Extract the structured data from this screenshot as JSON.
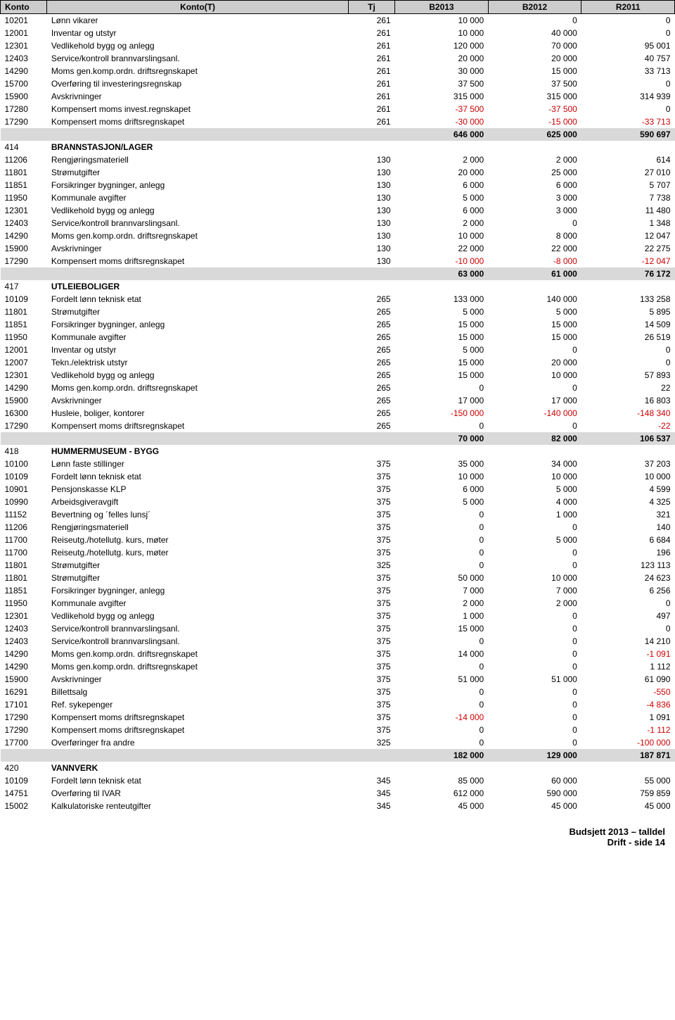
{
  "header": {
    "cols": [
      "Konto",
      "Konto(T)",
      "Tj",
      "B2013",
      "B2012",
      "R2011"
    ]
  },
  "footer": {
    "line1": "Budsjett 2013 – talldel",
    "line2": "Drift - side 14"
  },
  "rows": [
    {
      "k": "10201",
      "t": "Lønn vikarer",
      "tj": "261",
      "a": "10 000",
      "b": "0",
      "c": "0"
    },
    {
      "k": "12001",
      "t": "Inventar og utstyr",
      "tj": "261",
      "a": "10 000",
      "b": "40 000",
      "c": "0"
    },
    {
      "k": "12301",
      "t": "Vedlikehold bygg og anlegg",
      "tj": "261",
      "a": "120 000",
      "b": "70 000",
      "c": "95 001"
    },
    {
      "k": "12403",
      "t": "Service/kontroll brannvarslingsanl.",
      "tj": "261",
      "a": "20 000",
      "b": "20 000",
      "c": "40 757"
    },
    {
      "k": "14290",
      "t": "Moms gen.komp.ordn. driftsregnskapet",
      "tj": "261",
      "a": "30 000",
      "b": "15 000",
      "c": "33 713"
    },
    {
      "k": "15700",
      "t": "Overføring til investeringsregnskap",
      "tj": "261",
      "a": "37 500",
      "b": "37 500",
      "c": "0"
    },
    {
      "k": "15900",
      "t": "Avskrivninger",
      "tj": "261",
      "a": "315 000",
      "b": "315 000",
      "c": "314 939"
    },
    {
      "k": "17280",
      "t": "Kompensert moms invest.regnskapet",
      "tj": "261",
      "a": "-37 500",
      "aNeg": true,
      "b": "-37 500",
      "bNeg": true,
      "c": "0"
    },
    {
      "k": "17290",
      "t": "Kompensert moms driftsregnskapet",
      "tj": "261",
      "a": "-30 000",
      "aNeg": true,
      "b": "-15 000",
      "bNeg": true,
      "c": "-33 713",
      "cNeg": true
    },
    {
      "section": true,
      "a": "646 000",
      "b": "625 000",
      "c": "590 697"
    },
    {
      "sectionLabel": true,
      "k": "414",
      "t": "BRANNSTASJON/LAGER"
    },
    {
      "k": "11206",
      "t": "Rengjøringsmateriell",
      "tj": "130",
      "a": "2 000",
      "b": "2 000",
      "c": "614"
    },
    {
      "k": "11801",
      "t": "Strømutgifter",
      "tj": "130",
      "a": "20 000",
      "b": "25 000",
      "c": "27 010"
    },
    {
      "k": "11851",
      "t": "Forsikringer bygninger, anlegg",
      "tj": "130",
      "a": "6 000",
      "b": "6 000",
      "c": "5 707"
    },
    {
      "k": "11950",
      "t": "Kommunale avgifter",
      "tj": "130",
      "a": "5 000",
      "b": "3 000",
      "c": "7 738"
    },
    {
      "k": "12301",
      "t": "Vedlikehold bygg og anlegg",
      "tj": "130",
      "a": "6 000",
      "b": "3 000",
      "c": "11 480"
    },
    {
      "k": "12403",
      "t": "Service/kontroll brannvarslingsanl.",
      "tj": "130",
      "a": "2 000",
      "b": "0",
      "c": "1 348"
    },
    {
      "k": "14290",
      "t": "Moms gen.komp.ordn. driftsregnskapet",
      "tj": "130",
      "a": "10 000",
      "b": "8 000",
      "c": "12 047"
    },
    {
      "k": "15900",
      "t": "Avskrivninger",
      "tj": "130",
      "a": "22 000",
      "b": "22 000",
      "c": "22 275"
    },
    {
      "k": "17290",
      "t": "Kompensert moms driftsregnskapet",
      "tj": "130",
      "a": "-10 000",
      "aNeg": true,
      "b": "-8 000",
      "bNeg": true,
      "c": "-12 047",
      "cNeg": true
    },
    {
      "section": true,
      "a": "63 000",
      "b": "61 000",
      "c": "76 172"
    },
    {
      "sectionLabel": true,
      "k": "417",
      "t": "UTLEIEBOLIGER"
    },
    {
      "k": "10109",
      "t": "Fordelt lønn teknisk etat",
      "tj": "265",
      "a": "133 000",
      "b": "140 000",
      "c": "133 258"
    },
    {
      "k": "11801",
      "t": "Strømutgifter",
      "tj": "265",
      "a": "5 000",
      "b": "5 000",
      "c": "5 895"
    },
    {
      "k": "11851",
      "t": "Forsikringer bygninger, anlegg",
      "tj": "265",
      "a": "15 000",
      "b": "15 000",
      "c": "14 509"
    },
    {
      "k": "11950",
      "t": "Kommunale avgifter",
      "tj": "265",
      "a": "15 000",
      "b": "15 000",
      "c": "26 519"
    },
    {
      "k": "12001",
      "t": "Inventar og utstyr",
      "tj": "265",
      "a": "5 000",
      "b": "0",
      "c": "0"
    },
    {
      "k": "12007",
      "t": "Tekn./elektrisk utstyr",
      "tj": "265",
      "a": "15 000",
      "b": "20 000",
      "c": "0"
    },
    {
      "k": "12301",
      "t": "Vedlikehold bygg og anlegg",
      "tj": "265",
      "a": "15 000",
      "b": "10 000",
      "c": "57 893"
    },
    {
      "k": "14290",
      "t": "Moms gen.komp.ordn. driftsregnskapet",
      "tj": "265",
      "a": "0",
      "b": "0",
      "c": "22"
    },
    {
      "k": "15900",
      "t": "Avskrivninger",
      "tj": "265",
      "a": "17 000",
      "b": "17 000",
      "c": "16 803"
    },
    {
      "k": "16300",
      "t": "Husleie, boliger, kontorer",
      "tj": "265",
      "a": "-150 000",
      "aNeg": true,
      "b": "-140 000",
      "bNeg": true,
      "c": "-148 340",
      "cNeg": true
    },
    {
      "k": "17290",
      "t": "Kompensert moms driftsregnskapet",
      "tj": "265",
      "a": "0",
      "b": "0",
      "c": "-22",
      "cNeg": true
    },
    {
      "section": true,
      "a": "70 000",
      "b": "82 000",
      "c": "106 537"
    },
    {
      "sectionLabel": true,
      "k": "418",
      "t": "HUMMERMUSEUM - BYGG"
    },
    {
      "k": "10100",
      "t": "Lønn faste stillinger",
      "tj": "375",
      "a": "35 000",
      "b": "34 000",
      "c": "37 203"
    },
    {
      "k": "10109",
      "t": "Fordelt lønn teknisk etat",
      "tj": "375",
      "a": "10 000",
      "b": "10 000",
      "c": "10 000"
    },
    {
      "k": "10901",
      "t": "Pensjonskasse KLP",
      "tj": "375",
      "a": "6 000",
      "b": "5 000",
      "c": "4 599"
    },
    {
      "k": "10990",
      "t": "Arbeidsgiveravgift",
      "tj": "375",
      "a": "5 000",
      "b": "4 000",
      "c": "4 325"
    },
    {
      "k": "11152",
      "t": "Bevertning og ´felles lunsj´",
      "tj": "375",
      "a": "0",
      "b": "1 000",
      "c": "321"
    },
    {
      "k": "11206",
      "t": "Rengjøringsmateriell",
      "tj": "375",
      "a": "0",
      "b": "0",
      "c": "140"
    },
    {
      "k": "11700",
      "t": "Reiseutg./hotellutg. kurs, møter",
      "tj": "375",
      "a": "0",
      "b": "5 000",
      "c": "6 684"
    },
    {
      "k": "11700",
      "t": "Reiseutg./hotellutg. kurs, møter",
      "tj": "375",
      "a": "0",
      "b": "0",
      "c": "196"
    },
    {
      "k": "11801",
      "t": "Strømutgifter",
      "tj": "325",
      "a": "0",
      "b": "0",
      "c": "123 113"
    },
    {
      "k": "11801",
      "t": "Strømutgifter",
      "tj": "375",
      "a": "50 000",
      "b": "10 000",
      "c": "24 623"
    },
    {
      "k": "11851",
      "t": "Forsikringer bygninger, anlegg",
      "tj": "375",
      "a": "7 000",
      "b": "7 000",
      "c": "6 256"
    },
    {
      "k": "11950",
      "t": "Kommunale avgifter",
      "tj": "375",
      "a": "2 000",
      "b": "2 000",
      "c": "0"
    },
    {
      "k": "12301",
      "t": "Vedlikehold bygg og anlegg",
      "tj": "375",
      "a": "1 000",
      "b": "0",
      "c": "497"
    },
    {
      "k": "12403",
      "t": "Service/kontroll brannvarslingsanl.",
      "tj": "375",
      "a": "15 000",
      "b": "0",
      "c": "0"
    },
    {
      "k": "12403",
      "t": "Service/kontroll brannvarslingsanl.",
      "tj": "375",
      "a": "0",
      "b": "0",
      "c": "14 210"
    },
    {
      "k": "14290",
      "t": "Moms gen.komp.ordn. driftsregnskapet",
      "tj": "375",
      "a": "14 000",
      "b": "0",
      "c": "-1 091",
      "cNeg": true
    },
    {
      "k": "14290",
      "t": "Moms gen.komp.ordn. driftsregnskapet",
      "tj": "375",
      "a": "0",
      "b": "0",
      "c": "1 112"
    },
    {
      "k": "15900",
      "t": "Avskrivninger",
      "tj": "375",
      "a": "51 000",
      "b": "51 000",
      "c": "61 090"
    },
    {
      "k": "16291",
      "t": "Billettsalg",
      "tj": "375",
      "a": "0",
      "b": "0",
      "c": "-550",
      "cNeg": true
    },
    {
      "k": "17101",
      "t": "Ref. sykepenger",
      "tj": "375",
      "a": "0",
      "b": "0",
      "c": "-4 836",
      "cNeg": true
    },
    {
      "k": "17290",
      "t": "Kompensert moms driftsregnskapet",
      "tj": "375",
      "a": "-14 000",
      "aNeg": true,
      "b": "0",
      "c": "1 091"
    },
    {
      "k": "17290",
      "t": "Kompensert moms driftsregnskapet",
      "tj": "375",
      "a": "0",
      "b": "0",
      "c": "-1 112",
      "cNeg": true
    },
    {
      "k": "17700",
      "t": "Overføringer fra andre",
      "tj": "325",
      "a": "0",
      "b": "0",
      "c": "-100 000",
      "cNeg": true
    },
    {
      "section": true,
      "a": "182 000",
      "b": "129 000",
      "c": "187 871"
    },
    {
      "sectionLabel": true,
      "k": "420",
      "t": "VANNVERK"
    },
    {
      "k": "10109",
      "t": "Fordelt lønn teknisk etat",
      "tj": "345",
      "a": "85 000",
      "b": "60 000",
      "c": "55 000"
    },
    {
      "k": "14751",
      "t": "Overføring til IVAR",
      "tj": "345",
      "a": "612 000",
      "b": "590 000",
      "c": "759 859"
    },
    {
      "k": "15002",
      "t": "Kalkulatoriske renteutgifter",
      "tj": "345",
      "a": "45 000",
      "b": "45 000",
      "c": "45 000"
    }
  ]
}
